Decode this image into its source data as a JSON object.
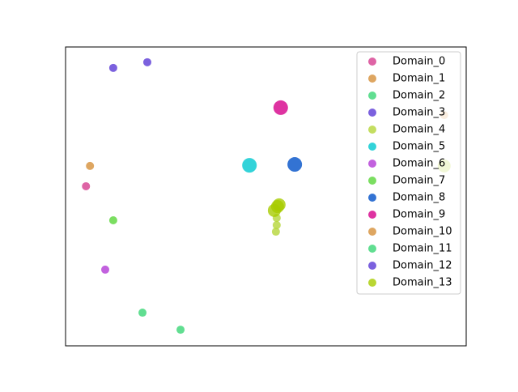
{
  "chart_data": {
    "type": "scatter",
    "xlim": [
      0,
      100
    ],
    "ylim": [
      0,
      100
    ],
    "legend": "upper right",
    "series": [
      {
        "name": "Domain_0",
        "color": "#d63d8f",
        "size": 5,
        "x": [
          5.1
        ],
        "values": [
          53.4
        ]
      },
      {
        "name": "Domain_1",
        "color": "#d6903a",
        "size": 5,
        "x": [
          6.1
        ],
        "values": [
          60.2
        ]
      },
      {
        "name": "Domain_2",
        "color": "#3ad676",
        "size": 5,
        "x": [
          28.7
        ],
        "values": [
          5.4
        ]
      },
      {
        "name": "Domain_3",
        "color": "#5a3ad6",
        "size": 5,
        "x": [
          11.9,
          20.4
        ],
        "values": [
          93.0,
          94.9
        ]
      },
      {
        "name": "Domain_4",
        "color": "#b5d63a",
        "size": 5,
        "x": [
          52.5,
          52.7,
          52.7
        ],
        "values": [
          38.2,
          40.4,
          42.8
        ]
      },
      {
        "name": "Domain_5",
        "color": "#00c8d0",
        "size": 9,
        "x": [
          45.9
        ],
        "values": [
          60.4
        ]
      },
      {
        "name": "Domain_6",
        "color": "#b33ad6",
        "size": 5,
        "x": [
          9.9
        ],
        "values": [
          25.5
        ]
      },
      {
        "name": "Domain_7",
        "color": "#5ad63a",
        "size": 5,
        "x": [
          11.9
        ],
        "values": [
          42.0
        ]
      },
      {
        "name": "Domain_8",
        "color": "#0050c8",
        "size": 9,
        "x": [
          57.2
        ],
        "values": [
          60.7
        ]
      },
      {
        "name": "Domain_9",
        "color": "#d6008a",
        "size": 9,
        "x": [
          53.7
        ],
        "values": [
          79.7
        ]
      },
      {
        "name": "Domain_10",
        "color": "#d6903a",
        "size": 5,
        "x": [
          94.5
        ],
        "values": [
          77.2
        ]
      },
      {
        "name": "Domain_11",
        "color": "#3ad676",
        "size": 5,
        "x": [
          19.2
        ],
        "values": [
          11.1
        ]
      },
      {
        "name": "Domain_12",
        "color": "#5a3ad6",
        "size": 5,
        "x": [],
        "values": []
      },
      {
        "name": "Domain_13",
        "color": "#a8cc00",
        "size": 8,
        "x": [
          52.9,
          52.1,
          53.3,
          94.5
        ],
        "values": [
          46.6,
          45.3,
          47.2,
          60.2
        ]
      }
    ]
  }
}
